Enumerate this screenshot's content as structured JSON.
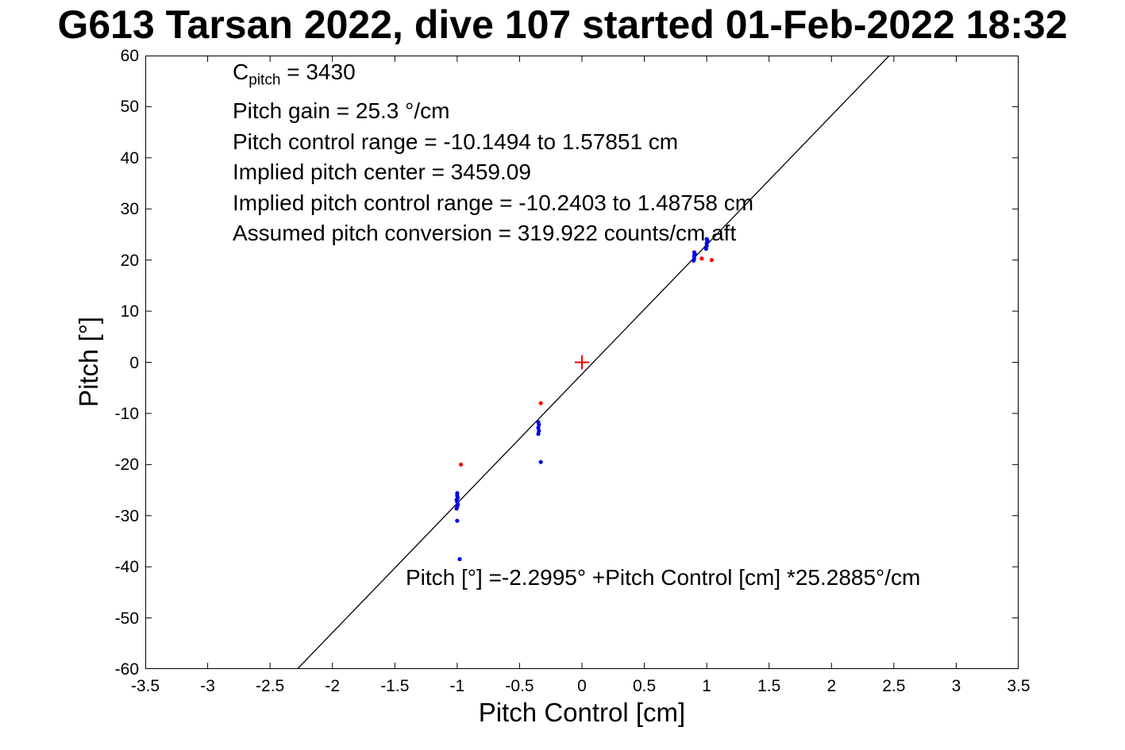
{
  "chart_data": {
    "type": "scatter",
    "title": "G613 Tarsan 2022, dive 107 started 01-Feb-2022 18:32",
    "xlabel": "Pitch Control [cm]",
    "ylabel": "Pitch [°]",
    "xlim": [
      -3.5,
      3.5
    ],
    "ylim": [
      -60,
      60
    ],
    "grid": false,
    "xtick_labels": [
      "-3.5",
      "-3",
      "-2.5",
      "-2",
      "-1.5",
      "-1",
      "-0.5",
      "0",
      "0.5",
      "1",
      "1.5",
      "2",
      "2.5",
      "3",
      "3.5"
    ],
    "ytick_labels": [
      "-60",
      "-50",
      "-40",
      "-30",
      "-20",
      "-10",
      "0",
      "10",
      "20",
      "30",
      "40",
      "50",
      "60"
    ],
    "fit_line": {
      "intercept": -2.2995,
      "slope": 25.2885,
      "color": "#000000"
    },
    "series": [
      {
        "name": "pitch-observations-blue",
        "marker": "dot",
        "color": "#0000ee",
        "points": [
          [
            -1.0,
            -25.6
          ],
          [
            -1.0,
            -26.1
          ],
          [
            -0.995,
            -26.5
          ],
          [
            -1.005,
            -26.9
          ],
          [
            -1.0,
            -27.3
          ],
          [
            -0.995,
            -27.8
          ],
          [
            -1.0,
            -28.2
          ],
          [
            -1.005,
            -28.6
          ],
          [
            -1.0,
            -31.0
          ],
          [
            -0.98,
            -38.5
          ],
          [
            -0.35,
            -11.7
          ],
          [
            -0.345,
            -12.2
          ],
          [
            -0.35,
            -12.8
          ],
          [
            -0.345,
            -13.4
          ],
          [
            -0.35,
            -14.0
          ],
          [
            -0.33,
            -19.5
          ],
          [
            0.895,
            19.9
          ],
          [
            0.9,
            20.3
          ],
          [
            0.9,
            20.8
          ],
          [
            0.905,
            21.2
          ],
          [
            0.9,
            21.5
          ],
          [
            0.995,
            22.2
          ],
          [
            1.0,
            22.8
          ],
          [
            1.0,
            23.3
          ],
          [
            1.005,
            23.8
          ],
          [
            1.0,
            24.1
          ]
        ]
      },
      {
        "name": "pitch-observations-red",
        "marker": "dot",
        "color": "#ff0000",
        "points": [
          [
            -0.97,
            -20.0
          ],
          [
            -0.33,
            -8.0
          ],
          [
            0.96,
            20.3
          ],
          [
            1.04,
            20.0
          ]
        ]
      },
      {
        "name": "implied-center-marker",
        "marker": "plus",
        "color": "#ff0000",
        "points": [
          [
            0,
            0
          ]
        ]
      }
    ],
    "annotations": {
      "cpitch_base": "C",
      "cpitch_sub": "pitch",
      "cpitch_rest": " = 3430",
      "lines": [
        "Pitch gain = 25.3 °/cm",
        "Pitch control range = -10.1494 to 1.57851 cm",
        "Implied pitch center = 3459.09",
        "Implied pitch control range = -10.2403 to 1.48758 cm",
        "Assumed pitch conversion = 319.922 counts/cm aft"
      ]
    },
    "equation": "Pitch [°] =-2.2995° +Pitch Control [cm] *25.2885°/cm"
  }
}
